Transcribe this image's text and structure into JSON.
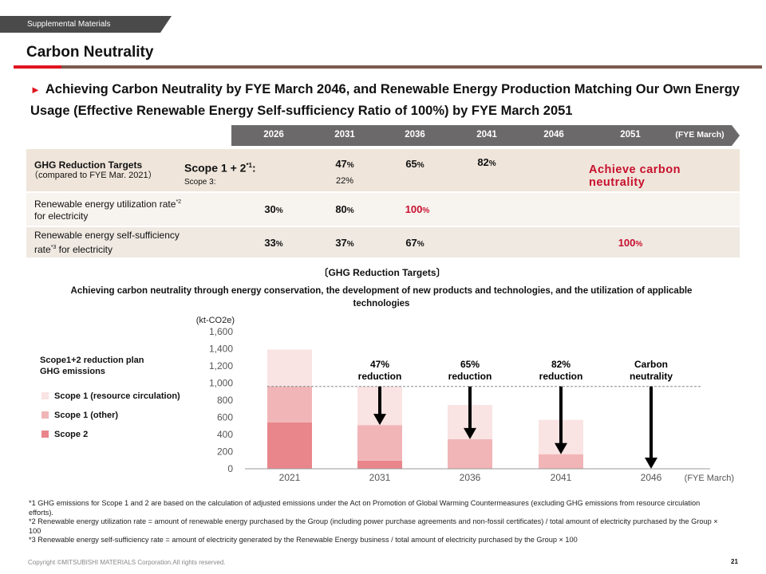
{
  "section_tag": "Supplemental Materials",
  "title": "Carbon Neutrality",
  "headline": "Achieving Carbon Neutrality by FYE March 2046, and Renewable Energy Production Matching Our Own Energy Usage (Effective Renewable Energy Self-sufficiency Ratio of 100%) by FYE March 2051",
  "table": {
    "years": [
      "2026",
      "2031",
      "2036",
      "2041",
      "2046",
      "2051"
    ],
    "unit": "(FYE March)",
    "ghg": {
      "label": "GHG Reduction Targets",
      "sublabel": "（compared to FYE Mar. 2021）",
      "scope12_label": "Scope 1 + 2",
      "scope12_note": "*1",
      "colon": ":",
      "scope3_label": "Scope 3:",
      "v2031": "47",
      "v2036": "65",
      "v2041": "82",
      "scope3_2031": "22%",
      "neutral": "Achieve carbon neutrality"
    },
    "util": {
      "label1": "Renewable energy utilization rate",
      "note": "*2",
      "label2": "for electricity",
      "v2026": "30",
      "v2031": "80",
      "v2036": "100"
    },
    "self": {
      "label1": "Renewable energy self-sufficiency",
      "label2a": "rate",
      "note": "*3",
      "label2b": " for electricity",
      "v2026": "33",
      "v2031": "37",
      "v2036": "67",
      "v2051": "100"
    },
    "pct": "%"
  },
  "chart_data": {
    "type": "bar",
    "stacked": true,
    "title": "〔GHG Reduction Targets〕",
    "subtitle": "Achieving carbon neutrality through energy conservation, the development of new products and technologies, and the utilization of applicable technologies",
    "ylabel": "(kt-CO2e)",
    "xlabel": "(FYE March)",
    "legend_title": [
      "Scope1+2 reduction plan",
      "GHG emissions"
    ],
    "legend_position": "left",
    "ylim": [
      0,
      1600
    ],
    "yticks": [
      "0",
      "200",
      "400",
      "600",
      "800",
      "1,000",
      "1,200",
      "1,400",
      "1,600"
    ],
    "categories": [
      "2021",
      "2031",
      "2036",
      "2041",
      "2046"
    ],
    "series": [
      {
        "name": "Scope 2",
        "color": "#e8868c",
        "values": [
          540,
          95,
          0,
          0,
          0
        ]
      },
      {
        "name": "Scope 1 (other)",
        "color": "#f1b5b8",
        "values": [
          420,
          415,
          345,
          170,
          0
        ]
      },
      {
        "name": "Scope 1 (resource circulation)",
        "color": "#f9e3e3",
        "values": [
          430,
          450,
          400,
          400,
          0
        ]
      }
    ],
    "reference_line": 960,
    "annotations": [
      {
        "category": "2031",
        "text": [
          "47%",
          "reduction"
        ]
      },
      {
        "category": "2036",
        "text": [
          "65%",
          "reduction"
        ]
      },
      {
        "category": "2041",
        "text": [
          "82%",
          "reduction"
        ]
      },
      {
        "category": "2046",
        "text": [
          "Carbon",
          "neutrality"
        ]
      }
    ]
  },
  "footnotes": [
    "*1 GHG emissions for Scope 1 and 2 are based on the calculation of adjusted emissions under the Act on Promotion of Global Warming Countermeasures (excluding GHG emissions from resource circulation efforts).",
    "*2 Renewable energy utilization rate = amount of renewable energy purchased by the Group (including power purchase agreements and non-fossil certificates) / total amount of electricity purchased by the Group × 100",
    "*3 Renewable energy self-sufficiency rate = amount of electricity generated by the Renewable Energy business / total amount of electricity purchased by the Group × 100"
  ],
  "copyright": "Copyright ©MITSUBISHI MATERIALS Corporation.All rights reserved.",
  "page_number": "21"
}
